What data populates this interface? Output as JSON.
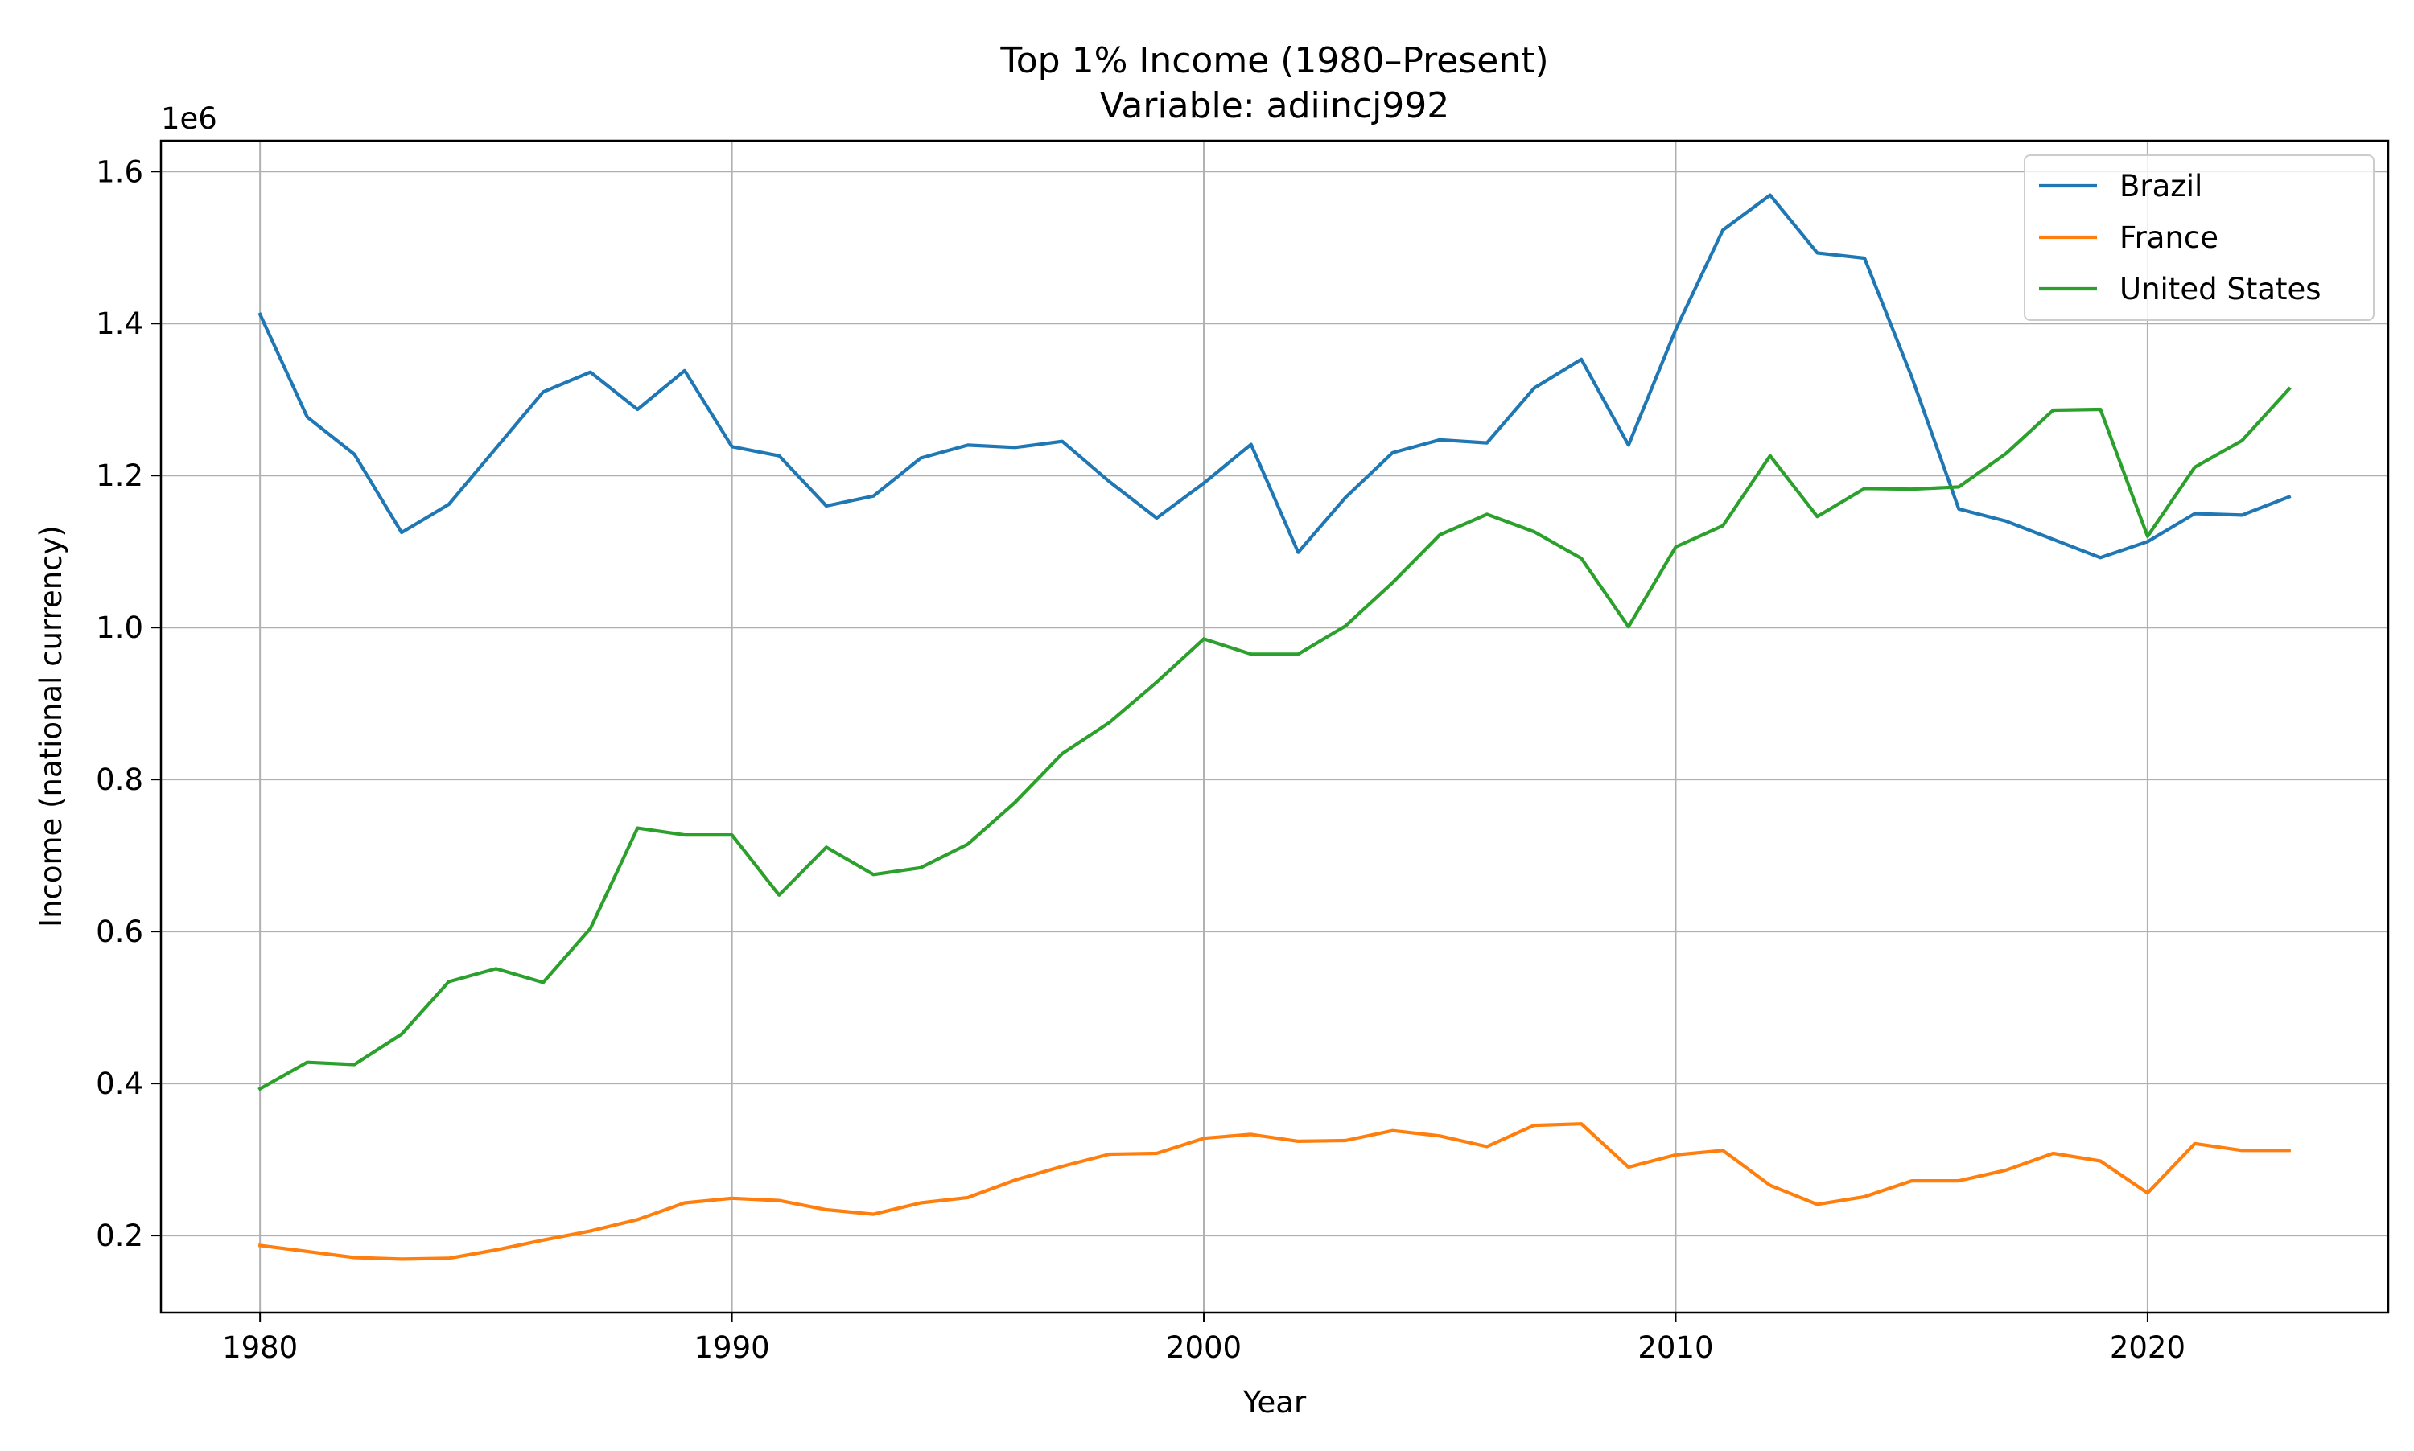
{
  "chart_data": {
    "type": "line",
    "title": "Top 1% Income (1980–Present)",
    "subtitle": "Variable: adiincj992",
    "xlabel": "Year",
    "ylabel": "Income (national currency)",
    "y_offset_label": "1e6",
    "xlim": [
      1977.9,
      2025.1
    ],
    "ylim": [
      0.0985,
      1.6405
    ],
    "x_ticks": [
      1980,
      1990,
      2000,
      2010,
      2020
    ],
    "x_tick_labels": [
      "1980",
      "1990",
      "2000",
      "2010",
      "2020"
    ],
    "y_ticks": [
      0.2,
      0.4,
      0.6,
      0.8,
      1.0,
      1.2,
      1.4,
      1.6
    ],
    "y_tick_labels": [
      "0.2",
      "0.4",
      "0.6",
      "0.8",
      "1.0",
      "1.2",
      "1.4",
      "1.6"
    ],
    "grid": true,
    "legend_position": "top-right",
    "x": [
      1980,
      1981,
      1982,
      1983,
      1984,
      1985,
      1986,
      1987,
      1988,
      1989,
      1990,
      1991,
      1992,
      1993,
      1994,
      1995,
      1996,
      1997,
      1998,
      1999,
      2000,
      2001,
      2002,
      2003,
      2004,
      2005,
      2006,
      2007,
      2008,
      2009,
      2010,
      2011,
      2012,
      2013,
      2014,
      2015,
      2016,
      2017,
      2018,
      2019,
      2020,
      2021,
      2022,
      2023
    ],
    "series": [
      {
        "name": "Brazil",
        "color": "#1f77b4",
        "values": [
          1.412,
          1.277,
          1.228,
          1.125,
          1.162,
          1.236,
          1.31,
          1.336,
          1.287,
          1.338,
          1.238,
          1.226,
          1.16,
          1.173,
          1.223,
          1.24,
          1.237,
          1.245,
          1.192,
          1.144,
          1.19,
          1.241,
          1.099,
          1.171,
          1.23,
          1.247,
          1.243,
          1.315,
          1.353,
          1.24,
          1.392,
          1.523,
          1.569,
          1.493,
          1.486,
          1.33,
          1.156,
          1.14,
          1.116,
          1.092,
          1.113,
          1.15,
          1.148,
          1.172
        ]
      },
      {
        "name": "France",
        "color": "#ff7f0e",
        "values": [
          0.187,
          0.179,
          0.171,
          0.169,
          0.17,
          0.181,
          0.194,
          0.206,
          0.221,
          0.243,
          0.249,
          0.246,
          0.234,
          0.228,
          0.243,
          0.25,
          0.273,
          0.291,
          0.307,
          0.308,
          0.328,
          0.333,
          0.324,
          0.325,
          0.338,
          0.331,
          0.317,
          0.345,
          0.347,
          0.29,
          0.306,
          0.312,
          0.266,
          0.241,
          0.251,
          0.272,
          0.272,
          0.286,
          0.308,
          0.298,
          0.256,
          0.321,
          0.312,
          0.312
        ]
      },
      {
        "name": "United States",
        "color": "#2ca02c",
        "values": [
          0.393,
          0.428,
          0.425,
          0.465,
          0.534,
          0.551,
          0.533,
          0.604,
          0.736,
          0.727,
          0.727,
          0.648,
          0.711,
          0.675,
          0.684,
          0.715,
          0.77,
          0.834,
          0.875,
          0.928,
          0.985,
          0.965,
          0.965,
          1.002,
          1.059,
          1.122,
          1.149,
          1.126,
          1.091,
          1.001,
          1.106,
          1.134,
          1.226,
          1.146,
          1.183,
          1.182,
          1.185,
          1.229,
          1.286,
          1.287,
          1.12,
          1.211,
          1.246,
          1.314
        ]
      }
    ]
  }
}
